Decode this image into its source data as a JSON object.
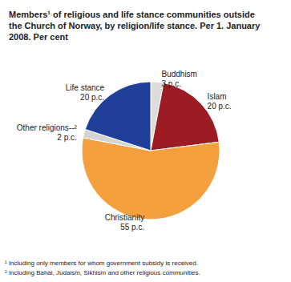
{
  "chart_data": {
    "type": "pie",
    "title": "Members¹ of religious and life stance communities outside the Church of Norway, by religion/life stance. Per 1. January 2008. Per cent",
    "categories": [
      "Buddhism",
      "Islam",
      "Christianity",
      "Other religions--²",
      "Life stance"
    ],
    "values": [
      3,
      20,
      55,
      2,
      20
    ],
    "value_labels": [
      "3 p.c.",
      "20 p.c.",
      "55 p.c.",
      "2 p.c.",
      "20 p.c."
    ],
    "colors": [
      "#dcdcdc",
      "#9b1c22",
      "#f5a03e",
      "#d4d4d4",
      "#1f3f98"
    ],
    "data_labels": true,
    "annotations": [
      "¹ Including only members for whom government subsidy is received.",
      "² Including Bahài, Judaism, Sikhism and other religious communities."
    ]
  }
}
